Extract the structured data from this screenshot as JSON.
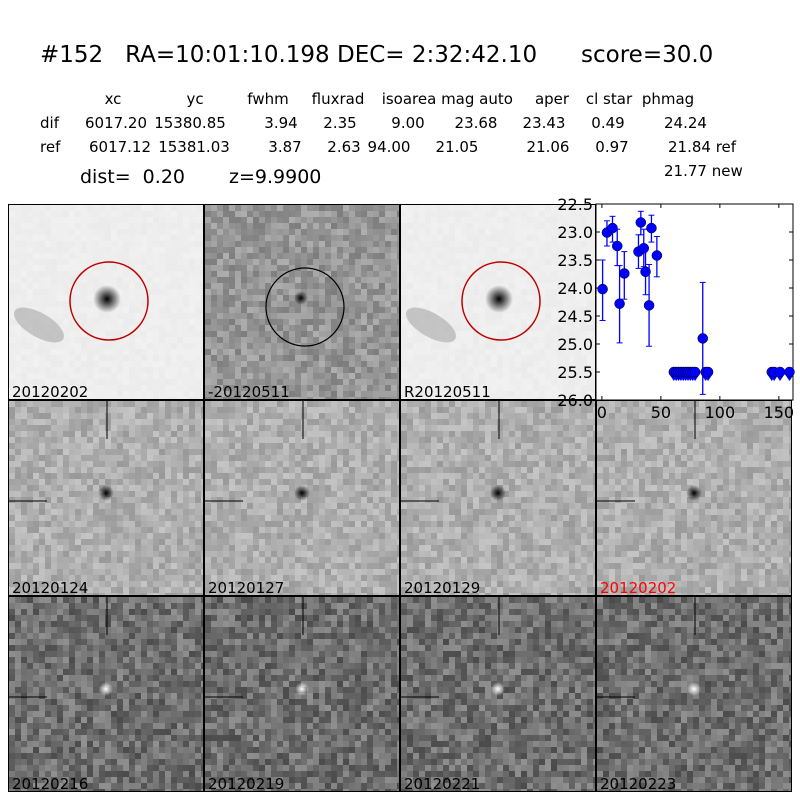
{
  "header": {
    "id": "#152",
    "ra": "RA=10:01:10.198",
    "dec": "DEC= 2:32:42.10",
    "score": "score=30.0"
  },
  "table": {
    "columns": [
      "xc",
      "yc",
      "fwhm",
      "fluxrad",
      "isoarea",
      "mag auto",
      "aper",
      "cl star",
      "phmag"
    ],
    "rows": [
      {
        "label": "dif",
        "values": [
          "6017.20",
          "15380.85",
          "3.94",
          "2.35",
          "9.00",
          "23.68",
          "23.43",
          "0.49",
          "24.24"
        ]
      },
      {
        "label": "ref",
        "values": [
          "6017.12",
          "15381.03",
          "3.87",
          "2.63",
          "94.00",
          "21.05",
          "21.06",
          "0.97",
          "21.84 ref"
        ]
      }
    ],
    "extra": "21.77 new"
  },
  "dist": "dist=  0.20",
  "z": "z=9.9900",
  "stamps": [
    {
      "label": "20120202",
      "kind": "ref",
      "circle": "#c00000"
    },
    {
      "label": "-20120511",
      "kind": "diff",
      "circle": "#000000"
    },
    {
      "label": "R20120511",
      "kind": "ref",
      "circle": "#c00000"
    },
    {
      "label": "20120124",
      "kind": "dark"
    },
    {
      "label": "20120127",
      "kind": "dark"
    },
    {
      "label": "20120129",
      "kind": "dark"
    },
    {
      "label": "20120202",
      "kind": "dark",
      "color": "#ff0000"
    },
    {
      "label": "20120216",
      "kind": "bright"
    },
    {
      "label": "20120219",
      "kind": "bright"
    },
    {
      "label": "20120221",
      "kind": "bright"
    },
    {
      "label": "20120223",
      "kind": "bright"
    }
  ],
  "chart_data": {
    "type": "scatter",
    "xlim": [
      -5,
      162
    ],
    "ylim": [
      26.0,
      22.5
    ],
    "xticks": [
      "0",
      "50",
      "100",
      "150"
    ],
    "yticks": [
      "22.5",
      "23.0",
      "23.5",
      "24.0",
      "24.5",
      "25.0",
      "25.5",
      "26.0"
    ],
    "color": "#0000ff",
    "detections": [
      {
        "x": 0.6,
        "y": 24.02,
        "lo": 23.5,
        "hi": 24.58
      },
      {
        "x": 4.3,
        "y": 23.01,
        "lo": 22.8,
        "hi": 23.25
      },
      {
        "x": 9,
        "y": 22.93,
        "lo": 22.72,
        "hi": 23.18
      },
      {
        "x": 13,
        "y": 23.25,
        "lo": 22.95,
        "hi": 23.6
      },
      {
        "x": 15,
        "y": 24.28,
        "lo": 23.6,
        "hi": 24.98
      },
      {
        "x": 19,
        "y": 23.74,
        "lo": 23.35,
        "hi": 24.2
      },
      {
        "x": 31,
        "y": 23.35,
        "lo": 23.05,
        "hi": 23.65
      },
      {
        "x": 33,
        "y": 22.83,
        "lo": 22.63,
        "hi": 23.05
      },
      {
        "x": 35.5,
        "y": 23.29,
        "lo": 22.95,
        "hi": 23.62
      },
      {
        "x": 37,
        "y": 23.71,
        "lo": 23.3,
        "hi": 24.12
      },
      {
        "x": 40,
        "y": 24.31,
        "lo": 23.58,
        "hi": 25.04
      },
      {
        "x": 42,
        "y": 22.93,
        "lo": 22.7,
        "hi": 23.18
      },
      {
        "x": 46.6,
        "y": 23.42,
        "lo": 23.08,
        "hi": 23.8
      },
      {
        "x": 85.5,
        "y": 24.9,
        "lo": 23.9,
        "hi": 25.9
      }
    ],
    "upper_limits": {
      "y": 25.5,
      "x": [
        61,
        63,
        65,
        67,
        69,
        71,
        73,
        75,
        77,
        79,
        88,
        90,
        144,
        146,
        151,
        159
      ]
    }
  }
}
